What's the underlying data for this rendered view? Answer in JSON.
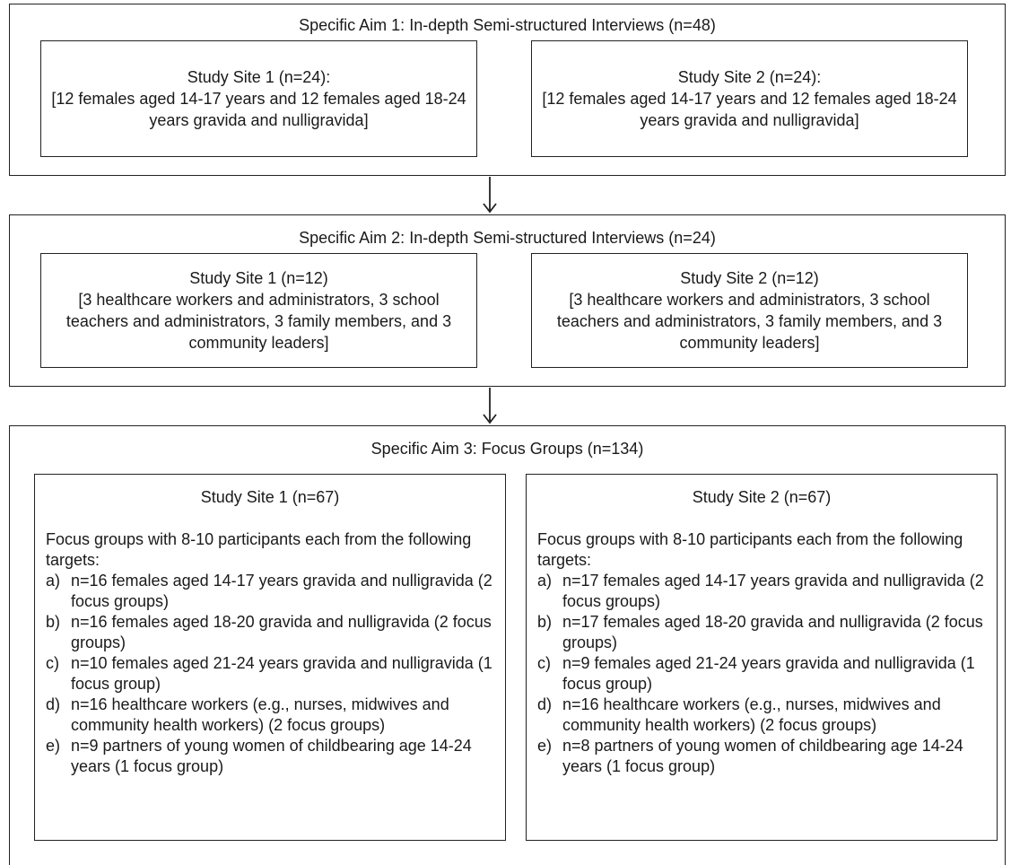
{
  "aim1": {
    "title": "Specific Aim 1: In-depth Semi-structured Interviews (n=48)",
    "site1": {
      "heading": "Study Site 1 (n=24):",
      "body": "[12 females aged 14-17 years and 12 females aged 18-24 years gravida and nulligravida]"
    },
    "site2": {
      "heading": "Study Site 2 (n=24):",
      "body": "[12 females aged 14-17 years and 12 females aged 18-24 years gravida and nulligravida]"
    }
  },
  "aim2": {
    "title": "Specific Aim 2: In-depth Semi-structured Interviews (n=24)",
    "site1": {
      "heading": "Study Site 1 (n=12)",
      "body": "[3 healthcare workers and administrators, 3 school teachers and administrators, 3 family members, and 3 community leaders]"
    },
    "site2": {
      "heading": "Study Site 2 (n=12)",
      "body": "[3 healthcare workers and administrators, 3 school teachers and administrators, 3 family members, and 3 community leaders]"
    }
  },
  "aim3": {
    "title": "Specific Aim 3: Focus Groups (n=134)",
    "site1": {
      "heading": "Study Site 1 (n=67)",
      "intro": "Focus groups with 8-10 participants each from the following targets:",
      "items": [
        {
          "marker": "a)",
          "text": "n=16 females aged 14-17 years gravida and nulligravida (2 focus groups)"
        },
        {
          "marker": "b)",
          "text": "n=16 females aged 18-20 gravida and nulligravida (2 focus groups)"
        },
        {
          "marker": "c)",
          "text": "n=10 females aged 21-24 years gravida and nulligravida (1 focus group)"
        },
        {
          "marker": "d)",
          "text": "n=16 healthcare workers (e.g., nurses, midwives and community health workers) (2 focus groups)"
        },
        {
          "marker": "e)",
          "text": "n=9 partners of young women of childbearing age 14-24 years (1 focus group)"
        }
      ]
    },
    "site2": {
      "heading": "Study Site 2 (n=67)",
      "intro": "Focus groups with 8-10 participants each from the following targets:",
      "items": [
        {
          "marker": "a)",
          "text": "n=17 females aged 14-17 years gravida and nulligravida (2 focus groups)"
        },
        {
          "marker": "b)",
          "text": "n=17 females aged 18-20 gravida and nulligravida (2 focus groups)"
        },
        {
          "marker": "c)",
          "text": "n=9 females aged 21-24 years gravida and nulligravida (1 focus group)"
        },
        {
          "marker": "d)",
          "text": "n=16 healthcare workers (e.g., nurses, midwives and community health workers) (2 focus groups)"
        },
        {
          "marker": "e)",
          "text": "n=8 partners of young women of childbearing age 14-24 years (1 focus group)"
        }
      ]
    }
  }
}
